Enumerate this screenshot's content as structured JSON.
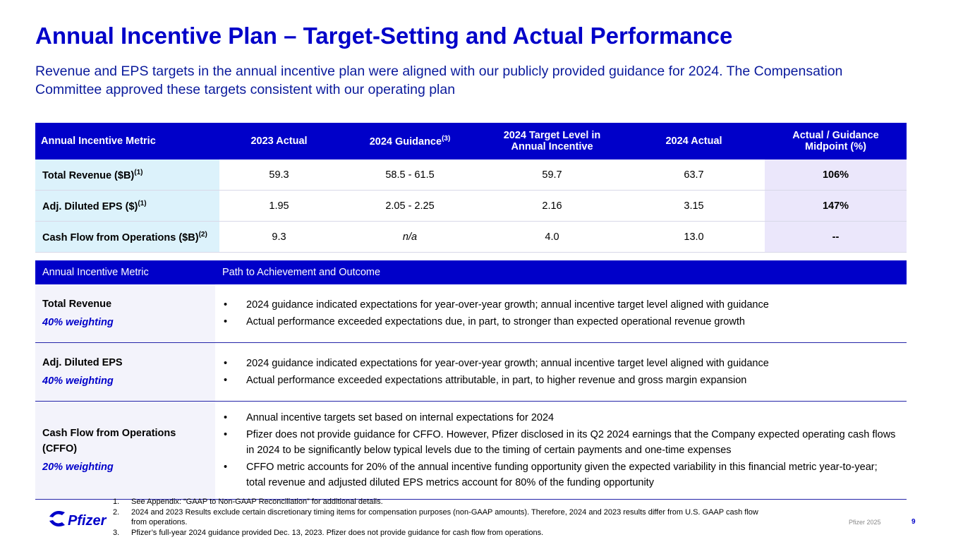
{
  "title": "Annual Incentive Plan – Target-Setting and Actual Performance",
  "subtitle": "Revenue and EPS targets in the annual incentive plan were aligned with our publicly provided guidance for 2024. The Compensation Committee approved these targets consistent with our operating plan",
  "table1": {
    "headers": [
      {
        "text": "Annual Incentive Metric"
      },
      {
        "text": "2023 Actual"
      },
      {
        "text": "2024 Guidance",
        "sup": "(3)"
      },
      {
        "text": "2024 Target Level in Annual Incentive"
      },
      {
        "text": "2024 Actual"
      },
      {
        "text": "Actual / Guidance Midpoint (%)"
      }
    ],
    "rows": [
      {
        "metric": "Total Revenue ($B)",
        "sup": "(1)",
        "cells": [
          "59.3",
          "58.5 - 61.5",
          "59.7",
          "63.7",
          "106%"
        ]
      },
      {
        "metric": "Adj. Diluted EPS ($)",
        "sup": "(1)",
        "cells": [
          "1.95",
          "2.05 - 2.25",
          "2.16",
          "3.15",
          "147%"
        ]
      },
      {
        "metric": "Cash Flow from Operations ($B)",
        "sup": "(2)",
        "cells": [
          "9.3",
          "n/a",
          "4.0",
          "13.0",
          "--"
        ]
      }
    ]
  },
  "table2": {
    "headers": [
      "Annual Incentive Metric",
      "Path to Achievement and Outcome"
    ],
    "rows": [
      {
        "metric": "Total Revenue",
        "weighting": "40% weighting",
        "bullets": [
          "2024 guidance indicated expectations for year-over-year growth; annual incentive target level aligned with guidance",
          "Actual performance exceeded expectations due, in part, to stronger than expected operational revenue growth"
        ]
      },
      {
        "metric": "Adj. Diluted EPS",
        "weighting": "40% weighting",
        "bullets": [
          "2024 guidance indicated expectations for year-over-year growth; annual incentive target level aligned with guidance",
          "Actual performance exceeded expectations attributable, in part, to higher revenue and gross margin expansion"
        ]
      },
      {
        "metric": "Cash Flow from Operations (CFFO)",
        "weighting": "20% weighting",
        "bullets": [
          "Annual incentive targets set based on internal expectations for 2024",
          "Pfizer does not provide guidance for CFFO. However, Pfizer disclosed in its Q2 2024 earnings that the Company expected operating cash flows in 2024 to be significantly below typical levels due to the timing of certain payments and one-time expenses",
          "CFFO metric accounts for 20% of the annual incentive funding opportunity given the expected variability in this financial metric year-to-year; total revenue and adjusted diluted EPS metrics account for 80% of the funding opportunity"
        ]
      }
    ]
  },
  "footnotes": [
    {
      "num": "1.",
      "text": "See Appendix: “GAAP to Non-GAAP Reconciliation” for additional details."
    },
    {
      "num": "2.",
      "text": "2024 and 2023 Results exclude certain discretionary timing items for compensation purposes (non-GAAP amounts). Therefore, 2024 and 2023 results differ from U.S. GAAP cash flow from operations."
    },
    {
      "num": "3.",
      "text": "Pfizer’s full-year 2024 guidance provided Dec. 13, 2023. Pfizer does not provide guidance for cash flow from operations."
    }
  ],
  "logo": "Pfizer",
  "footer": "Pfizer 2025",
  "page": "9"
}
